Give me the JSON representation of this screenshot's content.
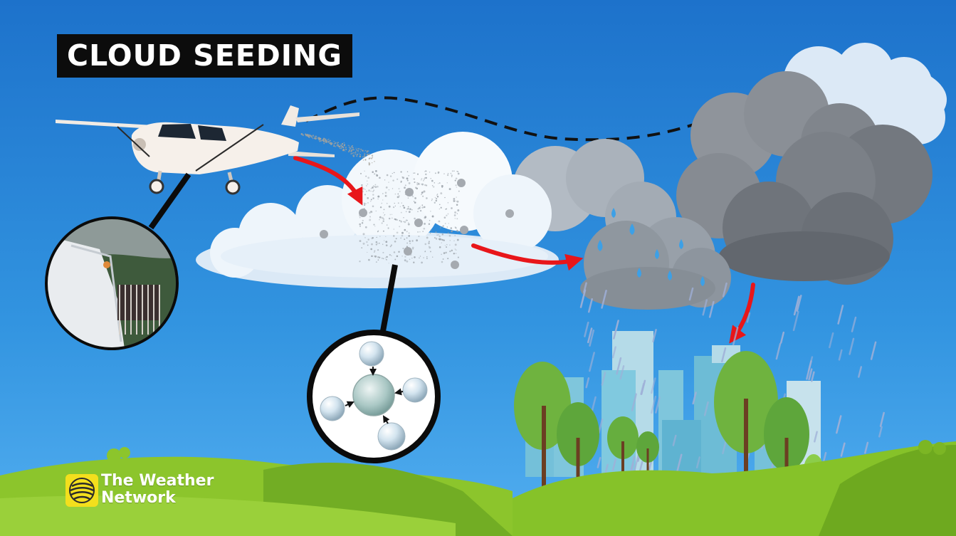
{
  "title": "CLOUD SEEDING",
  "brand": {
    "line1": "The Weather",
    "line2": "Network"
  },
  "colors": {
    "sky_top": "#1d74cc",
    "sky_bottom": "#4aa8ec",
    "grass": "#86c229",
    "arrow_red": "#e8161a",
    "title_bg": "#0c0c0c",
    "logo_yellow": "#f3df1d"
  }
}
